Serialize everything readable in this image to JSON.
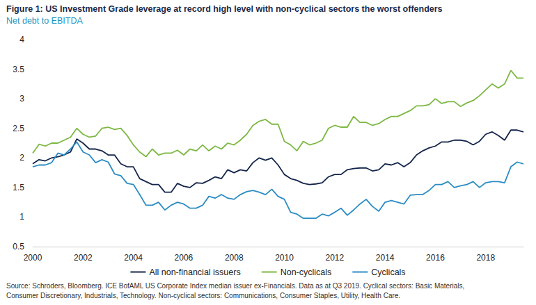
{
  "chart_data": {
    "type": "line",
    "title": "Figure 1: US Investment Grade leverage at record high level with non-cyclical sectors the worst offenders",
    "subtitle": "Net debt to EBITDA",
    "source": [
      "Source: Schroders, Bloomberg. ICE BofAML US Corporate Index median issuer ex-Financials. Data as at Q3 2019. Cyclical sectors: Basic Materials,",
      "Consumer Discretionary, Industrials, Technology. Non-cyclical sectors: Communications, Consumer Staples, Utility, Health Care."
    ],
    "x": [
      2000,
      2000.25,
      2000.5,
      2000.75,
      2001,
      2001.25,
      2001.5,
      2001.75,
      2002,
      2002.25,
      2002.5,
      2002.75,
      2003,
      2003.25,
      2003.5,
      2003.75,
      2004,
      2004.25,
      2004.5,
      2004.75,
      2005,
      2005.25,
      2005.5,
      2005.75,
      2006,
      2006.25,
      2006.5,
      2006.75,
      2007,
      2007.25,
      2007.5,
      2007.75,
      2008,
      2008.25,
      2008.5,
      2008.75,
      2009,
      2009.25,
      2009.5,
      2009.75,
      2010,
      2010.25,
      2010.5,
      2010.75,
      2011,
      2011.25,
      2011.5,
      2011.75,
      2012,
      2012.25,
      2012.5,
      2012.75,
      2013,
      2013.25,
      2013.5,
      2013.75,
      2014,
      2014.25,
      2014.5,
      2014.75,
      2015,
      2015.25,
      2015.5,
      2015.75,
      2016,
      2016.25,
      2016.5,
      2016.75,
      2017,
      2017.25,
      2017.5,
      2017.75,
      2018,
      2018.25,
      2018.5,
      2018.75,
      2019,
      2019.25,
      2019.5
    ],
    "series": [
      {
        "name": "All non-financial issuers",
        "color": "#14254a",
        "values": [
          1.9,
          1.97,
          1.95,
          2.0,
          2.02,
          2.05,
          2.1,
          2.32,
          2.25,
          2.15,
          2.15,
          2.12,
          2.05,
          2.05,
          1.9,
          1.85,
          1.85,
          1.65,
          1.6,
          1.55,
          1.55,
          1.42,
          1.42,
          1.57,
          1.52,
          1.5,
          1.58,
          1.57,
          1.62,
          1.68,
          1.65,
          1.8,
          1.75,
          1.8,
          1.78,
          1.92,
          2.0,
          1.96,
          2.0,
          1.88,
          1.72,
          1.65,
          1.62,
          1.57,
          1.55,
          1.56,
          1.58,
          1.68,
          1.72,
          1.72,
          1.8,
          1.82,
          1.83,
          1.83,
          1.78,
          1.8,
          1.9,
          1.88,
          1.92,
          1.85,
          1.92,
          2.05,
          2.12,
          2.17,
          2.2,
          2.27,
          2.27,
          2.3,
          2.3,
          2.28,
          2.22,
          2.28,
          2.4,
          2.44,
          2.38,
          2.3,
          2.47,
          2.47,
          2.44
        ]
      },
      {
        "name": "Non-cyclicals",
        "color": "#7cb843",
        "values": [
          2.08,
          2.23,
          2.2,
          2.25,
          2.25,
          2.3,
          2.35,
          2.5,
          2.4,
          2.35,
          2.37,
          2.5,
          2.52,
          2.48,
          2.5,
          2.38,
          2.22,
          2.1,
          2.02,
          2.15,
          2.05,
          2.08,
          2.08,
          2.13,
          2.05,
          2.15,
          2.12,
          2.22,
          2.12,
          2.2,
          2.15,
          2.25,
          2.22,
          2.3,
          2.4,
          2.55,
          2.62,
          2.65,
          2.57,
          2.57,
          2.28,
          2.22,
          2.12,
          2.28,
          2.22,
          2.25,
          2.3,
          2.5,
          2.55,
          2.52,
          2.52,
          2.7,
          2.6,
          2.6,
          2.55,
          2.58,
          2.65,
          2.7,
          2.7,
          2.75,
          2.8,
          2.88,
          2.88,
          2.9,
          3.0,
          2.92,
          2.95,
          2.95,
          2.87,
          2.93,
          2.97,
          3.05,
          3.15,
          3.25,
          3.18,
          3.25,
          3.48,
          3.35,
          3.35
        ]
      },
      {
        "name": "Cyclicals",
        "color": "#2b8cc4",
        "values": [
          1.85,
          1.88,
          1.88,
          1.92,
          2.08,
          2.05,
          2.15,
          2.27,
          2.1,
          2.05,
          1.92,
          1.97,
          1.93,
          1.73,
          1.7,
          1.57,
          1.55,
          1.38,
          1.2,
          1.2,
          1.25,
          1.12,
          1.2,
          1.25,
          1.22,
          1.15,
          1.15,
          1.2,
          1.35,
          1.32,
          1.38,
          1.32,
          1.3,
          1.38,
          1.43,
          1.45,
          1.42,
          1.38,
          1.47,
          1.35,
          1.3,
          1.08,
          1.05,
          0.98,
          0.98,
          0.98,
          1.05,
          1.02,
          1.08,
          1.15,
          1.03,
          1.12,
          1.22,
          1.3,
          1.18,
          1.1,
          1.25,
          1.28,
          1.25,
          1.22,
          1.37,
          1.38,
          1.38,
          1.45,
          1.55,
          1.55,
          1.6,
          1.5,
          1.53,
          1.55,
          1.6,
          1.5,
          1.58,
          1.6,
          1.6,
          1.58,
          1.85,
          1.93,
          1.9
        ]
      }
    ],
    "xlim": [
      2000,
      2019.5
    ],
    "xticks": [
      2000,
      2002,
      2004,
      2006,
      2008,
      2010,
      2012,
      2014,
      2016,
      2018
    ],
    "ylim": [
      0.5,
      4
    ],
    "yticks": [
      0.5,
      1,
      1.5,
      2,
      2.5,
      3,
      3.5,
      4
    ],
    "grid": false,
    "legend": "bottom"
  }
}
